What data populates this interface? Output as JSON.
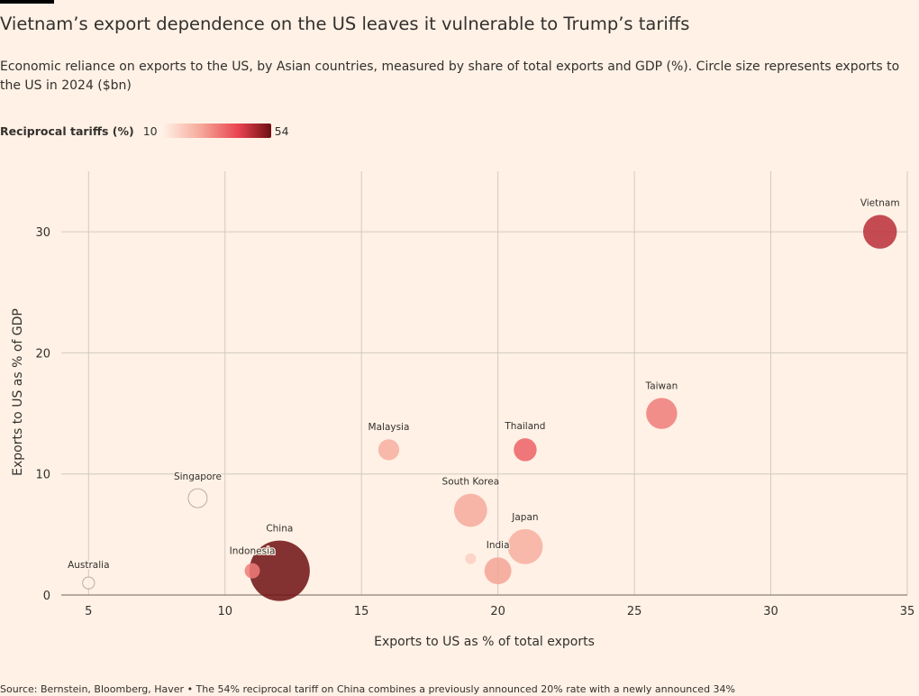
{
  "title": "Vietnam’s export dependence on the US leaves it vulnerable to Trump’s tariffs",
  "subtitle": "Economic reliance on exports to the US, by Asian countries, measured by share of total exports and GDP (%). Circle size represents exports to the US in 2024 ($bn)",
  "legend": {
    "title": "Reciprocal tariffs (%)",
    "min": "10",
    "max": "54"
  },
  "source": "Source: Bernstein, Bloomberg, Haver • The 54% reciprocal tariff on China combines a previously announced 20% rate with a newly announced 34%",
  "colors": {
    "background": "#FFF1E5",
    "grid": "#D3C9C1",
    "text": "#33302E",
    "tariff_low": "#FFF1E5",
    "tariff_high": "#6E0F12"
  },
  "chart_data": {
    "type": "scatter",
    "xlabel": "Exports to US as % of total exports",
    "ylabel": "Exports to US as % of GDP",
    "xlim": [
      4,
      35
    ],
    "ylim": [
      0,
      35
    ],
    "xticks": [
      "5",
      "10",
      "15",
      "20",
      "25",
      "30",
      "35"
    ],
    "yticks": [
      "0",
      "10",
      "20",
      "30"
    ],
    "grid": true,
    "size_variable": "exports to the US in 2024 ($bn)",
    "color_variable": "Reciprocal tariffs (%)",
    "points": [
      {
        "label": "Vietnam",
        "x": 34,
        "y": 30,
        "size": 137,
        "tariff": 46
      },
      {
        "label": "Taiwan",
        "x": 26,
        "y": 15,
        "size": 116,
        "tariff": 32
      },
      {
        "label": "Malaysia",
        "x": 16,
        "y": 12,
        "size": 53,
        "tariff": 24
      },
      {
        "label": "Thailand",
        "x": 21,
        "y": 12,
        "size": 63,
        "tariff": 36
      },
      {
        "label": "Singapore",
        "x": 9,
        "y": 8,
        "size": 43,
        "tariff": 10
      },
      {
        "label": "South Korea",
        "x": 19,
        "y": 7,
        "size": 132,
        "tariff": 25
      },
      {
        "label": "Japan",
        "x": 21,
        "y": 4,
        "size": 148,
        "tariff": 24
      },
      {
        "label": "India",
        "x": 20,
        "y": 2,
        "size": 87,
        "tariff": 26
      },
      {
        "label": "China",
        "x": 12,
        "y": 2,
        "size": 439,
        "tariff": 54
      },
      {
        "label": "Indonesia",
        "x": 11,
        "y": 2,
        "size": 28,
        "tariff": 32
      },
      {
        "label": "Australia",
        "x": 5,
        "y": 1,
        "size": 17,
        "tariff": 10
      },
      {
        "label": "",
        "x": 19,
        "y": 3,
        "size": 14,
        "tariff": 17
      }
    ]
  }
}
